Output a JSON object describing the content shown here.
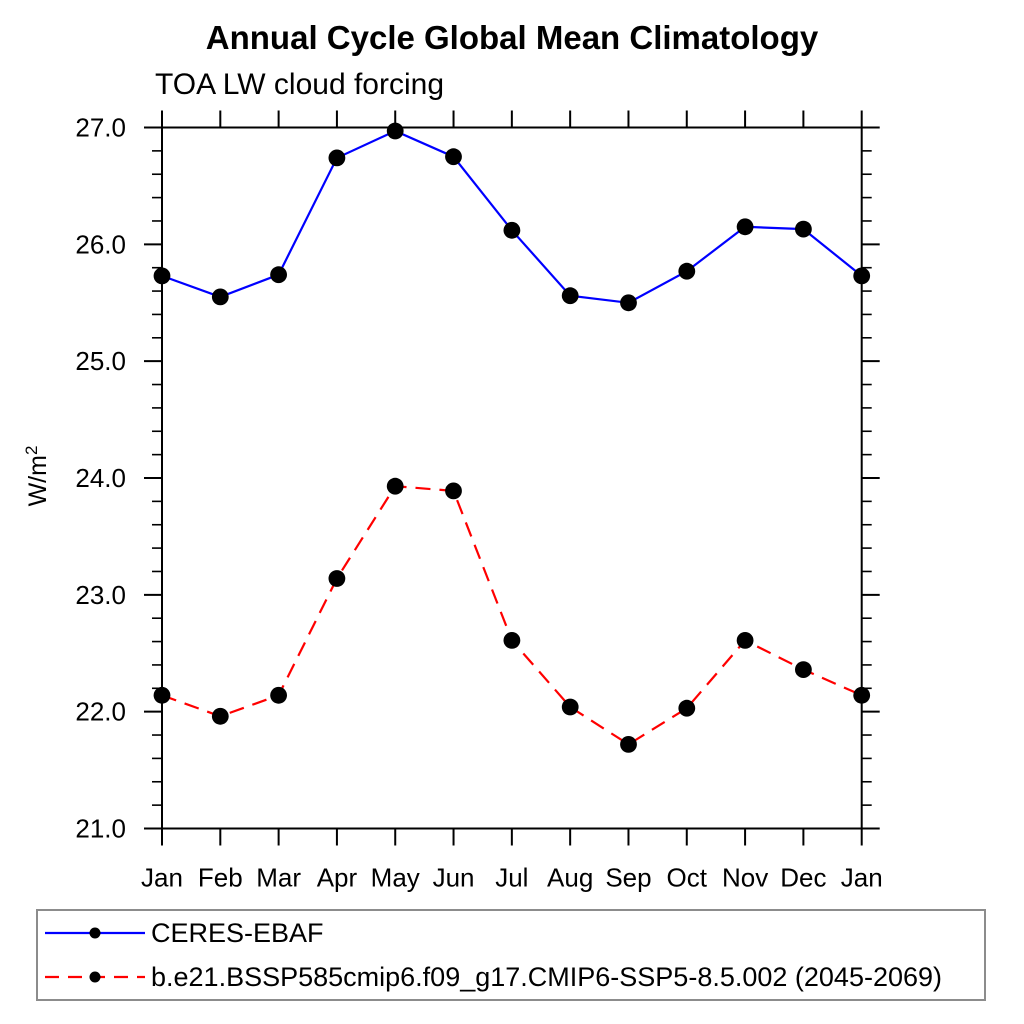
{
  "chart_data": {
    "type": "line",
    "title": "Annual Cycle Global Mean Climatology",
    "subtitle": "TOA LW cloud forcing",
    "ylabel": "W/m²",
    "xlabel": "",
    "categories": [
      "Jan",
      "Feb",
      "Mar",
      "Apr",
      "May",
      "Jun",
      "Jul",
      "Aug",
      "Sep",
      "Oct",
      "Nov",
      "Dec",
      "Jan"
    ],
    "series": [
      {
        "name": "CERES-EBAF",
        "color": "#0000ff",
        "line_style": "solid",
        "marker": "filled-circle",
        "marker_color": "#000000",
        "values": [
          25.73,
          25.55,
          25.74,
          26.74,
          26.97,
          26.75,
          26.12,
          25.56,
          25.5,
          25.77,
          26.15,
          26.13,
          25.73
        ]
      },
      {
        "name": "b.e21.BSSP585cmip6.f09_g17.CMIP6-SSP5-8.5.002 (2045-2069)",
        "color": "#ff0000",
        "line_style": "dashed",
        "marker": "filled-circle",
        "marker_color": "#000000",
        "values": [
          22.14,
          21.96,
          22.14,
          23.14,
          23.93,
          23.89,
          22.61,
          22.04,
          21.72,
          22.03,
          22.61,
          22.36,
          22.14
        ]
      }
    ],
    "ylim": [
      21.0,
      27.0
    ],
    "yticks": [
      21.0,
      22.0,
      23.0,
      24.0,
      25.0,
      26.0,
      27.0
    ],
    "ytick_labels": [
      "21.0",
      "22.0",
      "23.0",
      "24.0",
      "25.0",
      "26.0",
      "27.0"
    ],
    "y_minor_step": 0.2,
    "grid": false,
    "legend_position": "bottom-left",
    "axis_color": "#000000",
    "legend_border_color": "#8c8c8c"
  }
}
